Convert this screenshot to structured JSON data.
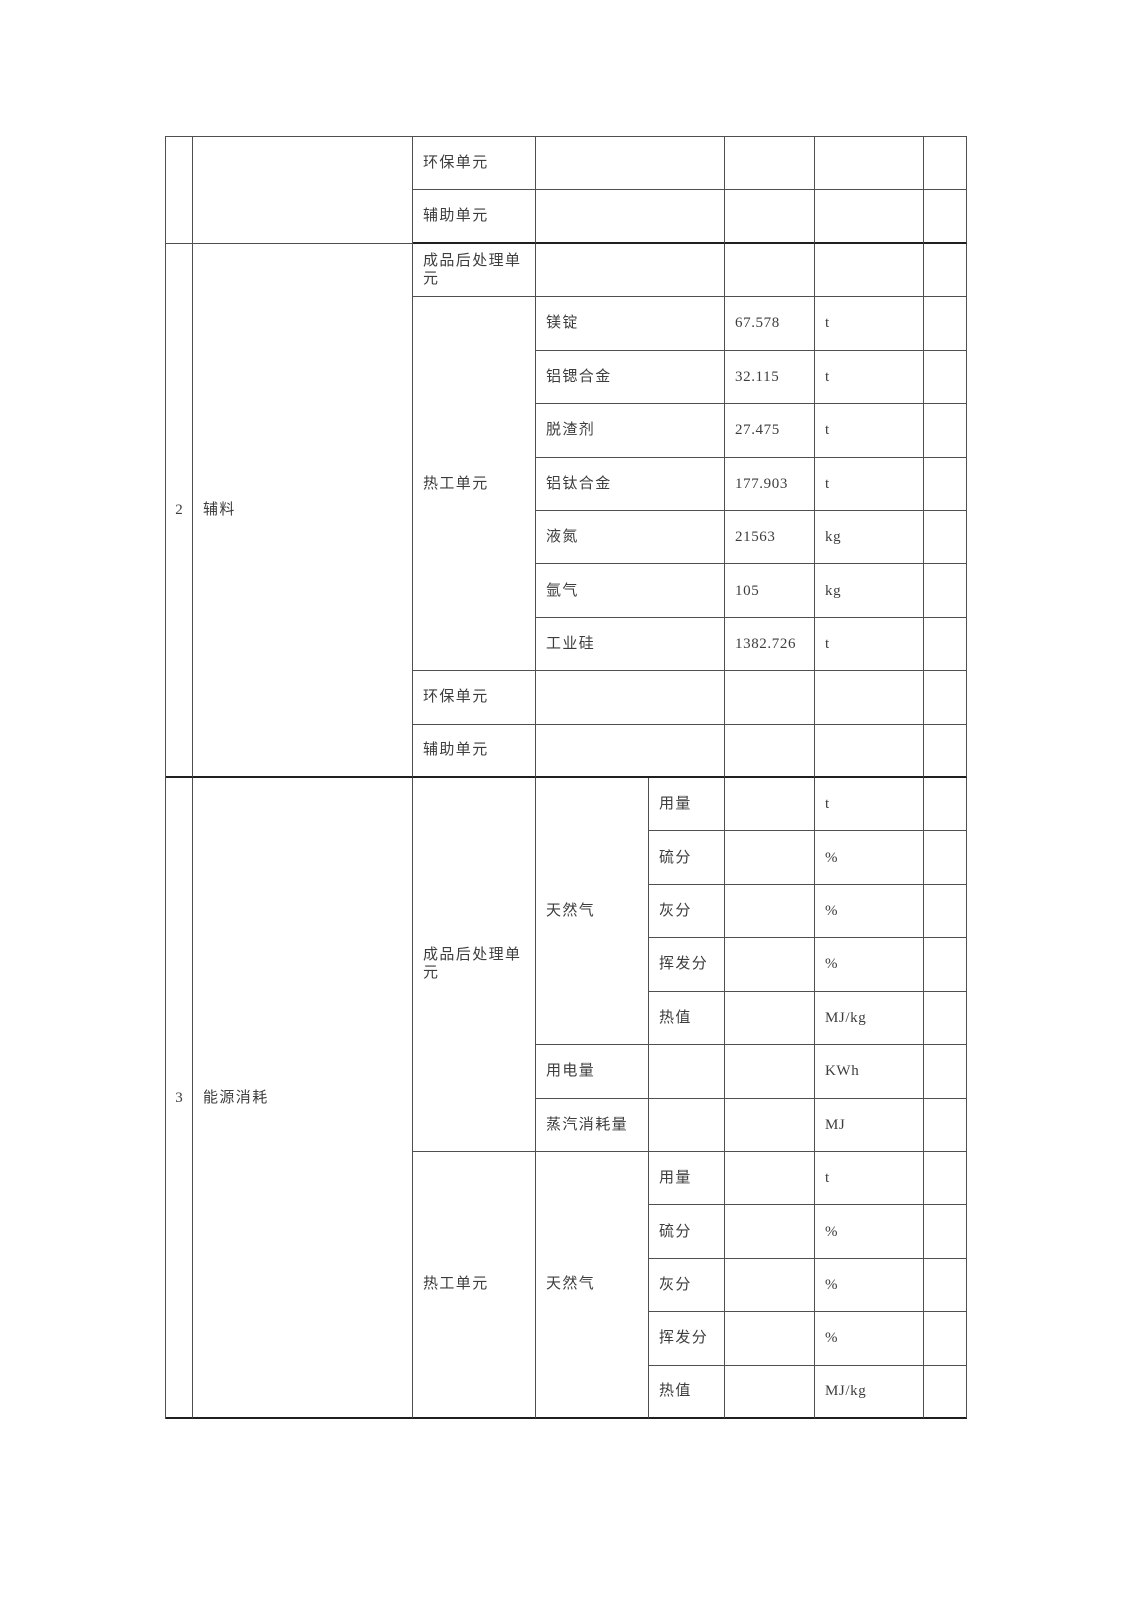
{
  "table": {
    "carryover": {
      "rows": [
        {
          "unit": "环保单元",
          "item": "",
          "value": "",
          "unit_label": ""
        },
        {
          "unit": "辅助单元",
          "item": "",
          "value": "",
          "unit_label": ""
        }
      ]
    },
    "section2": {
      "index": "2",
      "category": "辅料",
      "post_unit": "成品后处理单元",
      "thermal_unit": "热工单元",
      "thermal_items": [
        {
          "item": "镁锭",
          "value": "67.578",
          "unit_label": "t"
        },
        {
          "item": "铝锶合金",
          "value": "32.115",
          "unit_label": "t"
        },
        {
          "item": "脱渣剂",
          "value": "27.475",
          "unit_label": "t"
        },
        {
          "item": "铝钛合金",
          "value": "177.903",
          "unit_label": "t"
        },
        {
          "item": "液氮",
          "value": "21563",
          "unit_label": "kg"
        },
        {
          "item": "氩气",
          "value": "105",
          "unit_label": "kg"
        },
        {
          "item": "工业硅",
          "value": "1382.726",
          "unit_label": "t"
        }
      ],
      "env_unit": "环保单元",
      "aux_unit": "辅助单元"
    },
    "section3": {
      "index": "3",
      "category": "能源消耗",
      "post_unit": "成品后处理单元",
      "thermal_unit": "热工单元",
      "post_gas": {
        "name": "天然气",
        "props": [
          {
            "label": "用量",
            "value": "",
            "unit_label": "t"
          },
          {
            "label": "硫分",
            "value": "",
            "unit_label": "%"
          },
          {
            "label": "灰分",
            "value": "",
            "unit_label": "%"
          },
          {
            "label": "挥发分",
            "value": "",
            "unit_label": "%"
          },
          {
            "label": "热值",
            "value": "",
            "unit_label": "MJ/kg"
          }
        ]
      },
      "electricity": {
        "label": "用电量",
        "value": "",
        "unit_label": "KWh"
      },
      "steam": {
        "label": "蒸汽消耗量",
        "value": "",
        "unit_label": "MJ"
      },
      "thermal_gas": {
        "name": "天然气",
        "props": [
          {
            "label": "用量",
            "value": "",
            "unit_label": "t"
          },
          {
            "label": "硫分",
            "value": "",
            "unit_label": "%"
          },
          {
            "label": "灰分",
            "value": "",
            "unit_label": "%"
          },
          {
            "label": "挥发分",
            "value": "",
            "unit_label": "%"
          },
          {
            "label": "热值",
            "value": "",
            "unit_label": "MJ/kg"
          }
        ]
      }
    }
  }
}
